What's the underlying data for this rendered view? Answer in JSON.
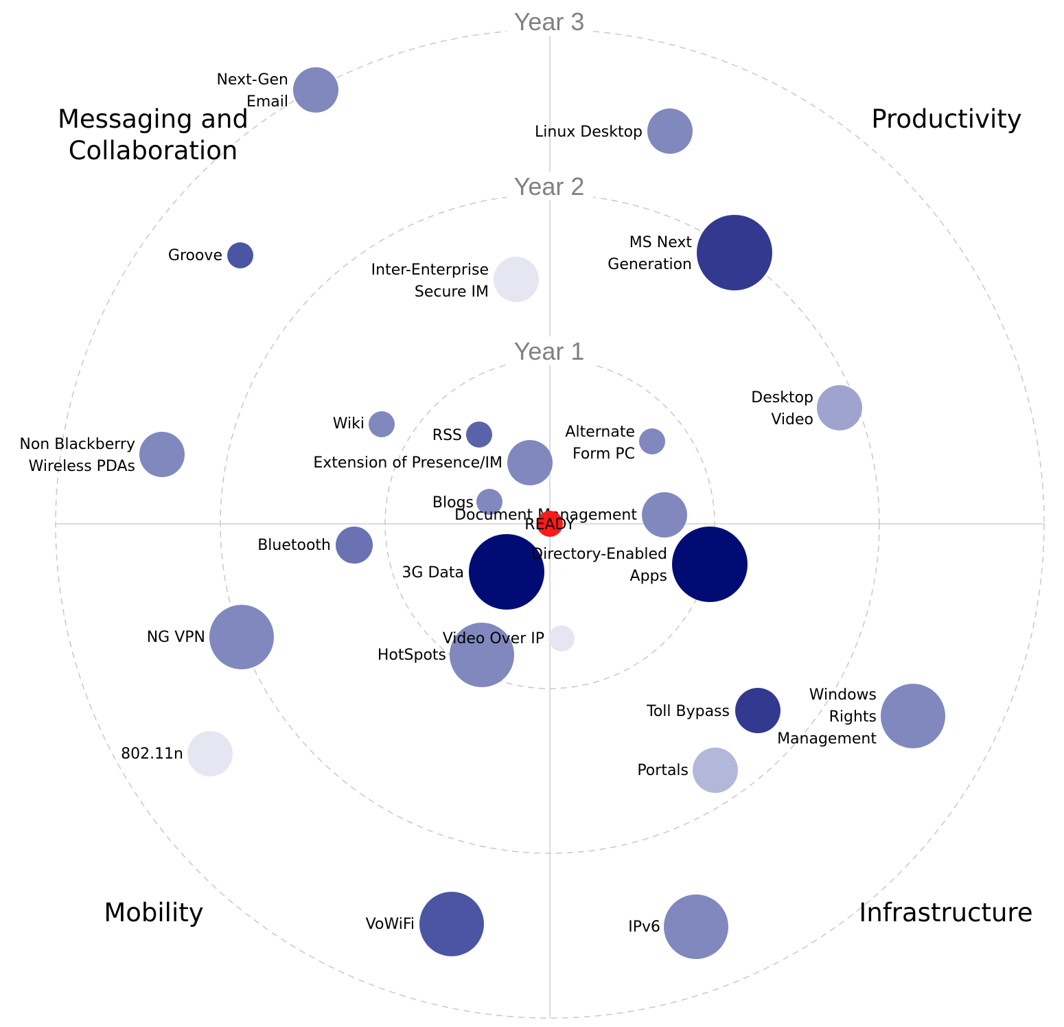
{
  "chart_data": {
    "type": "radar-bubble",
    "rings": [
      "Year 1",
      "Year 2",
      "Year 3"
    ],
    "quadrants": {
      "top_left": [
        "Messaging and",
        "Collaboration"
      ],
      "top_right": [
        "Productivity"
      ],
      "bottom_left": [
        "Mobility"
      ],
      "bottom_right": [
        "Infrastructure"
      ]
    },
    "center_label": "READY",
    "center_color": "#ff1a1a",
    "items": [
      {
        "name": [
          "Next-Gen",
          "Email"
        ],
        "color": "#8088be"
      },
      {
        "name": [
          "Linux Desktop"
        ],
        "color": "#8088be"
      },
      {
        "name": [
          "Groove"
        ],
        "color": "#4b55a3"
      },
      {
        "name": [
          "Inter-Enterprise",
          "Secure IM"
        ],
        "color": "#e5e6f2"
      },
      {
        "name": [
          "MS Next",
          "Generation"
        ],
        "color": "#33398f"
      },
      {
        "name": [
          "Desktop",
          "Video"
        ],
        "color": "#9fa4cf"
      },
      {
        "name": [
          "Wiki"
        ],
        "color": "#8088be"
      },
      {
        "name": [
          "RSS"
        ],
        "color": "#5a63aa"
      },
      {
        "name": [
          "Alternate",
          "Form PC"
        ],
        "color": "#8088be"
      },
      {
        "name": [
          "Extension of Presence/IM"
        ],
        "color": "#8088be"
      },
      {
        "name": [
          "Non Blackberry",
          "Wireless PDAs"
        ],
        "color": "#8088be"
      },
      {
        "name": [
          "Blogs"
        ],
        "color": "#8088be"
      },
      {
        "name": [
          "Document Management"
        ],
        "color": "#8088be"
      },
      {
        "name": [
          "Bluetooth"
        ],
        "color": "#6a72b3"
      },
      {
        "name": [
          "3G Data"
        ],
        "color": "#000c74"
      },
      {
        "name": [
          "Directory-Enabled",
          "Apps"
        ],
        "color": "#000c74"
      },
      {
        "name": [
          "NG VPN"
        ],
        "color": "#8088be"
      },
      {
        "name": [
          "Video Over IP"
        ],
        "color": "#e5e6f2"
      },
      {
        "name": [
          "HotSpots"
        ],
        "color": "#8088be"
      },
      {
        "name": [
          "Toll Bypass"
        ],
        "color": "#33398f"
      },
      {
        "name": [
          "Windows",
          "Rights",
          "Management"
        ],
        "color": "#8088be"
      },
      {
        "name": [
          "Portals"
        ],
        "color": "#b3b7d9"
      },
      {
        "name": [
          "802.11n"
        ],
        "color": "#e5e6f2"
      },
      {
        "name": [
          "VoWiFi"
        ],
        "color": "#4b55a3"
      },
      {
        "name": [
          "IPv6"
        ],
        "color": "#8088be"
      }
    ]
  }
}
